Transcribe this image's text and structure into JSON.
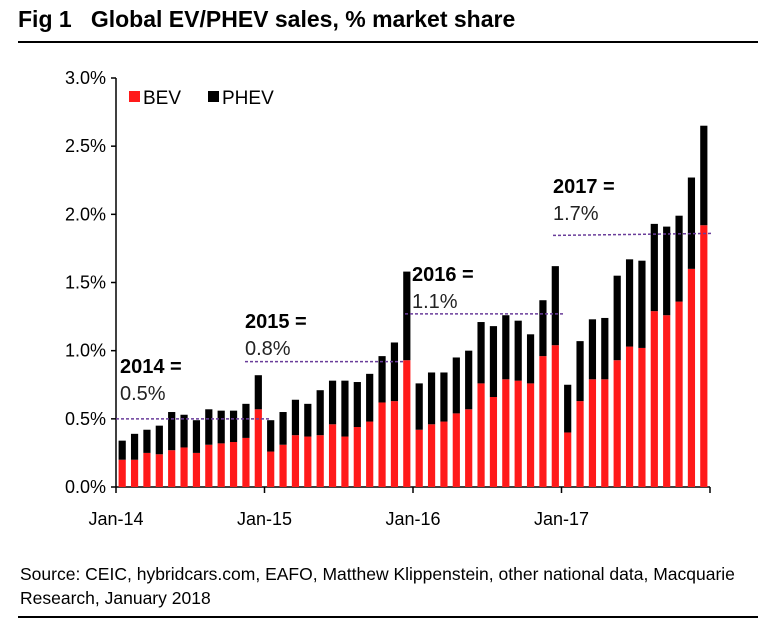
{
  "title": "Fig 1   Global EV/PHEV sales, % market share",
  "source": "Source: CEIC, hybridcars.com, EAFO, Matthew Klippenstein, other national data, Macquarie Research, January 2018",
  "chart_data": {
    "type": "bar",
    "stacked": true,
    "title": "Global EV/PHEV sales, % market share",
    "xlabel": "",
    "ylabel": "",
    "ylim": [
      0,
      3.0
    ],
    "y_ticks": [
      "0.0%",
      "0.5%",
      "1.0%",
      "1.5%",
      "2.0%",
      "2.5%",
      "3.0%"
    ],
    "x_ticks": [
      "Jan-14",
      "Jan-15",
      "Jan-16",
      "Jan-17"
    ],
    "legend": {
      "placement": "top-left",
      "entries": [
        "BEV",
        "PHEV"
      ]
    },
    "colors": {
      "BEV": "#ff1a1a",
      "PHEV": "#000000",
      "average_line": "#6a3d9a"
    },
    "grid": false,
    "series": [
      {
        "name": "BEV",
        "values": [
          0.2,
          0.2,
          0.25,
          0.24,
          0.27,
          0.29,
          0.25,
          0.31,
          0.32,
          0.33,
          0.36,
          0.57,
          0.26,
          0.31,
          0.38,
          0.37,
          0.38,
          0.46,
          0.37,
          0.44,
          0.48,
          0.62,
          0.63,
          0.93,
          0.42,
          0.46,
          0.48,
          0.54,
          0.57,
          0.76,
          0.66,
          0.79,
          0.78,
          0.76,
          0.96,
          1.04,
          0.4,
          0.63,
          0.79,
          0.79,
          0.93,
          1.03,
          1.02,
          1.29,
          1.26,
          1.36,
          1.6,
          1.92
        ]
      },
      {
        "name": "PHEV",
        "values": [
          0.14,
          0.19,
          0.17,
          0.21,
          0.28,
          0.24,
          0.24,
          0.26,
          0.24,
          0.23,
          0.25,
          0.25,
          0.23,
          0.24,
          0.26,
          0.24,
          0.33,
          0.32,
          0.41,
          0.33,
          0.35,
          0.34,
          0.43,
          0.65,
          0.34,
          0.38,
          0.36,
          0.41,
          0.43,
          0.45,
          0.52,
          0.47,
          0.44,
          0.36,
          0.41,
          0.58,
          0.35,
          0.44,
          0.44,
          0.45,
          0.62,
          0.64,
          0.64,
          0.64,
          0.65,
          0.63,
          0.67,
          0.73
        ]
      }
    ],
    "annotations": [
      {
        "year": "2014 =",
        "value": "0.5%",
        "line_level": 0.5
      },
      {
        "year": "2015 =",
        "value": "0.8%",
        "line_level": 0.92
      },
      {
        "year": "2016 =",
        "value": "1.1%",
        "line_level": 1.27
      },
      {
        "year": "2017 =",
        "value": "1.7%",
        "line_level": 1.86
      }
    ]
  }
}
